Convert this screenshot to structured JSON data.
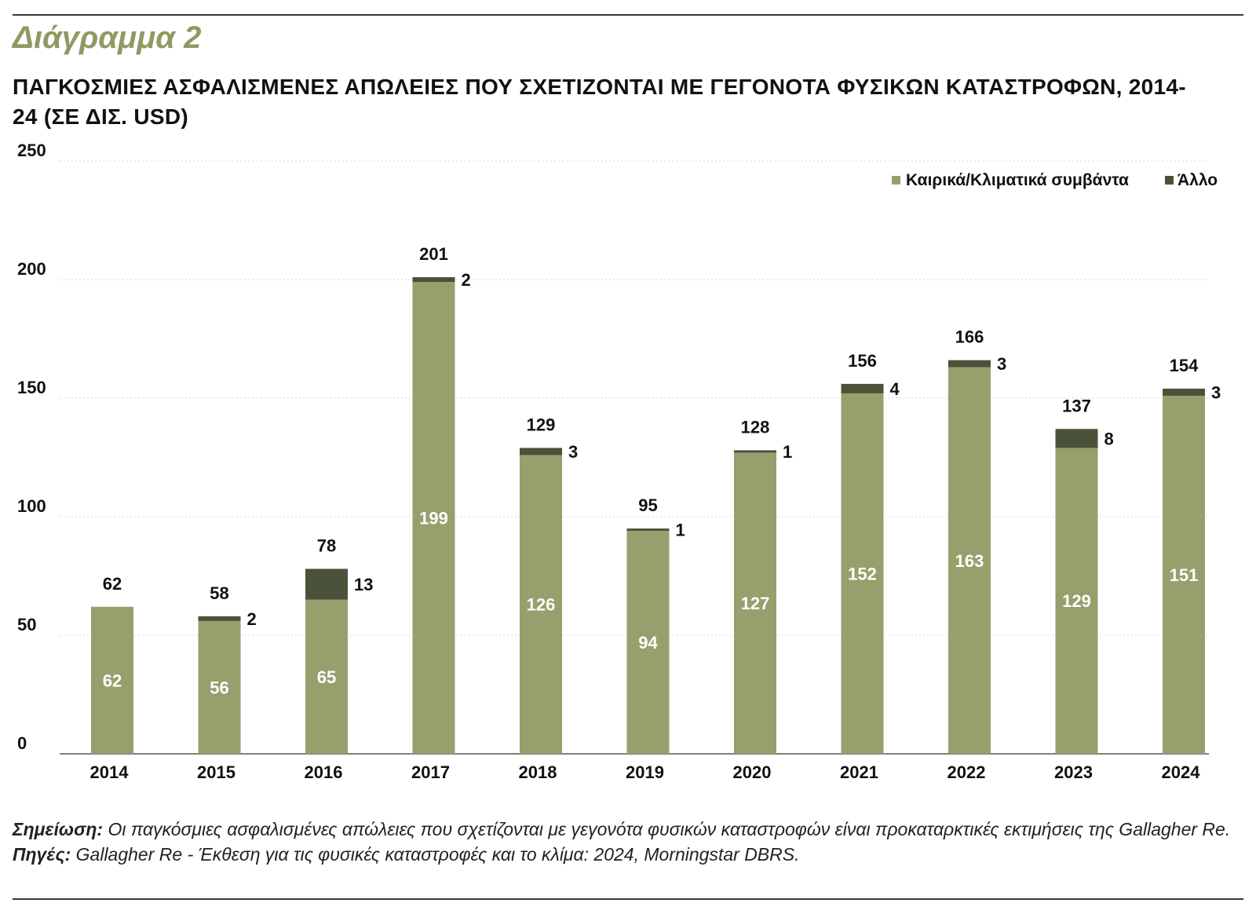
{
  "heading": "Διάγραμμα 2",
  "subtitle": "ΠΑΓΚΟΣΜΙΕΣ ΑΣΦΑΛΙΣΜΕΝΕΣ ΑΠΩΛΕΙΕΣ ΠΟΥ ΣΧΕΤΙΖΟΝΤΑΙ ΜΕ ΓΕΓΟΝΟΤΑ ΦΥΣΙΚΩΝ ΚΑΤΑΣΤΡΟΦΩΝ, 2014-24 (ΣΕ ΔΙΣ. USD)",
  "colors": {
    "weather": "#979f6d",
    "other": "#4b523a",
    "heading": "#8f9a62"
  },
  "chart_data": {
    "type": "bar",
    "stacked": true,
    "categories": [
      "2014",
      "2015",
      "2016",
      "2017",
      "2018",
      "2019",
      "2020",
      "2021",
      "2022",
      "2023",
      "2024"
    ],
    "series": [
      {
        "name": "Καιρικά/Κλιματικά συμβάντα",
        "values": [
          62,
          56,
          65,
          199,
          126,
          94,
          127,
          152,
          163,
          129,
          151
        ]
      },
      {
        "name": "Άλλο",
        "values": [
          0,
          2,
          13,
          2,
          3,
          1,
          1,
          4,
          3,
          8,
          3
        ]
      }
    ],
    "totals": [
      62,
      58,
      78,
      201,
      129,
      95,
      128,
      156,
      166,
      137,
      154
    ],
    "y_ticks": [
      0,
      50,
      100,
      150,
      200,
      250
    ],
    "ylim": [
      0,
      250
    ],
    "grid": true,
    "legend_position": "top-right"
  },
  "notes": {
    "note_label": "Σημείωση:",
    "note_text": " Οι παγκόσμιες ασφαλισμένες απώλειες που σχετίζονται με γεγονότα φυσικών καταστροφών είναι προκαταρκτικές εκτιμήσεις της Gallagher Re.",
    "source_label": "Πηγές:",
    "source_text": " Gallagher Re - Έκθεση για τις φυσικές καταστροφές και το κλίμα: 2024, Morningstar DBRS."
  }
}
